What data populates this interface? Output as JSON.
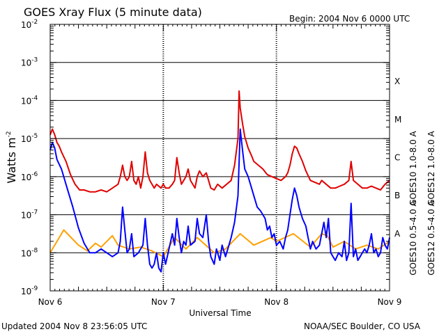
{
  "header": {
    "title": "GOES Xray Flux (5 minute data)",
    "begin_label": "Begin:  2004 Nov 6 0000 UTC"
  },
  "footer": {
    "updated": "Updated 2004 Nov  8 23:56:05 UTC",
    "credit": "NOAA/SEC Boulder, CO USA"
  },
  "colors": {
    "goes12_long": "#e00000",
    "goes12_short": "#0000ff",
    "goes10_long": "#8000c0",
    "goes10_short": "#ffa000",
    "grid": "#000000",
    "background": "#ffffff"
  },
  "chart_data": {
    "type": "line",
    "title": "GOES Xray Flux (5 minute data)",
    "xlabel": "Universal Time",
    "ylabel": {
      "base": "Watts m",
      "sup": "-2"
    },
    "yscale": "log",
    "ylim_exponent": [
      -9,
      -2
    ],
    "xlim_days": [
      0,
      3
    ],
    "x_tick_labels": [
      "Nov 6",
      "Nov 7",
      "Nov 8",
      "Nov 9"
    ],
    "y_ticks": [
      {
        "base": "10",
        "exp": "-9"
      },
      {
        "base": "10",
        "exp": "-8"
      },
      {
        "base": "10",
        "exp": "-7"
      },
      {
        "base": "10",
        "exp": "-6"
      },
      {
        "base": "10",
        "exp": "-5"
      },
      {
        "base": "10",
        "exp": "-4"
      },
      {
        "base": "10",
        "exp": "-3"
      },
      {
        "base": "10",
        "exp": "-2"
      }
    ],
    "flare_classes": [
      {
        "label": "A",
        "exponent": -8
      },
      {
        "label": "B",
        "exponent": -7
      },
      {
        "label": "C",
        "exponent": -6
      },
      {
        "label": "M",
        "exponent": -5
      },
      {
        "label": "X",
        "exponent": -4
      }
    ],
    "legend": [
      {
        "name": "GOES12 1.0-8.0 A",
        "color": "#e00000"
      },
      {
        "name": "GOES10 1.0-8.0 A",
        "color": "#8000c0"
      },
      {
        "name": "GOES12 0.5-4.0 A",
        "color": "#0000ff"
      },
      {
        "name": "GOES10 0.5-4.0 A",
        "color": "#ffa000"
      }
    ],
    "series": [
      {
        "name": "GOES10 0.5-4.0 A",
        "color": "#ffa000",
        "points": [
          [
            0.0,
            -8.0
          ],
          [
            0.12,
            -7.4
          ],
          [
            0.25,
            -7.8
          ],
          [
            0.33,
            -7.95
          ],
          [
            0.4,
            -7.75
          ],
          [
            0.45,
            -7.85
          ],
          [
            0.5,
            -7.7
          ],
          [
            0.55,
            -7.55
          ],
          [
            0.6,
            -7.8
          ],
          [
            0.7,
            -7.9
          ],
          [
            0.8,
            -7.85
          ],
          [
            0.9,
            -7.95
          ],
          [
            1.0,
            -8.1
          ],
          [
            1.1,
            -7.6
          ],
          [
            1.2,
            -7.9
          ],
          [
            1.3,
            -7.6
          ],
          [
            1.45,
            -8.0
          ],
          [
            1.55,
            -7.9
          ],
          [
            1.68,
            -7.5
          ],
          [
            1.8,
            -7.8
          ],
          [
            1.95,
            -7.6
          ],
          [
            2.0,
            -7.7
          ],
          [
            2.15,
            -7.5
          ],
          [
            2.3,
            -7.85
          ],
          [
            2.4,
            -7.5
          ],
          [
            2.45,
            -7.55
          ],
          [
            2.5,
            -7.85
          ],
          [
            2.6,
            -7.7
          ],
          [
            2.7,
            -7.9
          ],
          [
            2.8,
            -7.8
          ],
          [
            2.9,
            -7.9
          ],
          [
            3.0,
            -7.7
          ]
        ]
      },
      {
        "name": "GOES12 0.5-4.0 A",
        "color": "#0000ff",
        "points": [
          [
            0.0,
            -5.3
          ],
          [
            0.02,
            -5.1
          ],
          [
            0.04,
            -5.25
          ],
          [
            0.06,
            -5.55
          ],
          [
            0.1,
            -5.8
          ],
          [
            0.15,
            -6.3
          ],
          [
            0.2,
            -6.8
          ],
          [
            0.25,
            -7.35
          ],
          [
            0.3,
            -7.75
          ],
          [
            0.35,
            -8.0
          ],
          [
            0.4,
            -8.0
          ],
          [
            0.45,
            -7.9
          ],
          [
            0.5,
            -8.0
          ],
          [
            0.55,
            -8.1
          ],
          [
            0.6,
            -8.0
          ],
          [
            0.62,
            -7.7
          ],
          [
            0.64,
            -6.8
          ],
          [
            0.66,
            -7.4
          ],
          [
            0.68,
            -8.0
          ],
          [
            0.7,
            -7.9
          ],
          [
            0.72,
            -7.5
          ],
          [
            0.74,
            -8.1
          ],
          [
            0.78,
            -8.0
          ],
          [
            0.82,
            -7.8
          ],
          [
            0.84,
            -7.1
          ],
          [
            0.86,
            -7.8
          ],
          [
            0.88,
            -8.3
          ],
          [
            0.9,
            -8.4
          ],
          [
            0.92,
            -8.3
          ],
          [
            0.94,
            -8.0
          ],
          [
            0.96,
            -8.4
          ],
          [
            0.98,
            -8.5
          ],
          [
            1.0,
            -8.0
          ],
          [
            1.02,
            -8.3
          ],
          [
            1.05,
            -7.9
          ],
          [
            1.08,
            -7.5
          ],
          [
            1.1,
            -7.8
          ],
          [
            1.12,
            -7.1
          ],
          [
            1.14,
            -7.6
          ],
          [
            1.16,
            -8.0
          ],
          [
            1.18,
            -7.7
          ],
          [
            1.2,
            -7.8
          ],
          [
            1.22,
            -7.3
          ],
          [
            1.24,
            -7.8
          ],
          [
            1.28,
            -7.7
          ],
          [
            1.3,
            -7.1
          ],
          [
            1.32,
            -7.5
          ],
          [
            1.35,
            -7.6
          ],
          [
            1.38,
            -7.0
          ],
          [
            1.4,
            -7.7
          ],
          [
            1.42,
            -8.1
          ],
          [
            1.45,
            -8.3
          ],
          [
            1.47,
            -7.9
          ],
          [
            1.5,
            -8.2
          ],
          [
            1.52,
            -7.8
          ],
          [
            1.55,
            -8.1
          ],
          [
            1.58,
            -7.8
          ],
          [
            1.6,
            -7.6
          ],
          [
            1.63,
            -7.2
          ],
          [
            1.66,
            -6.5
          ],
          [
            1.68,
            -4.75
          ],
          [
            1.7,
            -5.3
          ],
          [
            1.72,
            -5.8
          ],
          [
            1.75,
            -6.0
          ],
          [
            1.78,
            -6.3
          ],
          [
            1.8,
            -6.5
          ],
          [
            1.83,
            -6.8
          ],
          [
            1.86,
            -6.9
          ],
          [
            1.88,
            -7.0
          ],
          [
            1.9,
            -7.1
          ],
          [
            1.92,
            -7.4
          ],
          [
            1.94,
            -7.3
          ],
          [
            1.96,
            -7.6
          ],
          [
            1.98,
            -7.5
          ],
          [
            2.0,
            -7.8
          ],
          [
            2.03,
            -7.7
          ],
          [
            2.06,
            -7.9
          ],
          [
            2.08,
            -7.6
          ],
          [
            2.1,
            -7.4
          ],
          [
            2.12,
            -7.0
          ],
          [
            2.14,
            -6.6
          ],
          [
            2.16,
            -6.3
          ],
          [
            2.18,
            -6.5
          ],
          [
            2.2,
            -6.8
          ],
          [
            2.23,
            -7.1
          ],
          [
            2.26,
            -7.3
          ],
          [
            2.28,
            -7.6
          ],
          [
            2.3,
            -7.9
          ],
          [
            2.32,
            -7.7
          ],
          [
            2.35,
            -7.9
          ],
          [
            2.38,
            -7.8
          ],
          [
            2.4,
            -7.5
          ],
          [
            2.42,
            -7.2
          ],
          [
            2.44,
            -7.6
          ],
          [
            2.46,
            -7.1
          ],
          [
            2.48,
            -8.0
          ],
          [
            2.5,
            -8.1
          ],
          [
            2.52,
            -8.2
          ],
          [
            2.55,
            -8.0
          ],
          [
            2.58,
            -8.1
          ],
          [
            2.6,
            -7.7
          ],
          [
            2.62,
            -8.2
          ],
          [
            2.64,
            -8.0
          ],
          [
            2.66,
            -6.7
          ],
          [
            2.68,
            -8.1
          ],
          [
            2.7,
            -7.9
          ],
          [
            2.72,
            -8.2
          ],
          [
            2.74,
            -8.1
          ],
          [
            2.76,
            -8.0
          ],
          [
            2.78,
            -7.9
          ],
          [
            2.8,
            -8.0
          ],
          [
            2.82,
            -7.8
          ],
          [
            2.84,
            -7.5
          ],
          [
            2.86,
            -8.0
          ],
          [
            2.88,
            -7.9
          ],
          [
            2.9,
            -8.1
          ],
          [
            2.92,
            -8.0
          ],
          [
            2.94,
            -7.6
          ],
          [
            2.96,
            -7.8
          ],
          [
            2.98,
            -7.9
          ],
          [
            3.0,
            -7.6
          ]
        ]
      },
      {
        "name": "GOES12 1.0-8.0 A",
        "color": "#e00000",
        "points": [
          [
            0.0,
            -4.9
          ],
          [
            0.02,
            -4.75
          ],
          [
            0.04,
            -4.9
          ],
          [
            0.06,
            -5.1
          ],
          [
            0.08,
            -5.2
          ],
          [
            0.1,
            -5.35
          ],
          [
            0.14,
            -5.6
          ],
          [
            0.18,
            -5.95
          ],
          [
            0.22,
            -6.2
          ],
          [
            0.26,
            -6.35
          ],
          [
            0.3,
            -6.35
          ],
          [
            0.35,
            -6.4
          ],
          [
            0.4,
            -6.4
          ],
          [
            0.45,
            -6.35
          ],
          [
            0.5,
            -6.4
          ],
          [
            0.55,
            -6.3
          ],
          [
            0.6,
            -6.2
          ],
          [
            0.62,
            -6.0
          ],
          [
            0.64,
            -5.7
          ],
          [
            0.66,
            -6.0
          ],
          [
            0.68,
            -6.1
          ],
          [
            0.7,
            -6.0
          ],
          [
            0.72,
            -5.6
          ],
          [
            0.74,
            -6.1
          ],
          [
            0.76,
            -6.2
          ],
          [
            0.78,
            -6.0
          ],
          [
            0.8,
            -6.3
          ],
          [
            0.82,
            -6.0
          ],
          [
            0.84,
            -5.35
          ],
          [
            0.86,
            -5.9
          ],
          [
            0.88,
            -6.1
          ],
          [
            0.9,
            -6.2
          ],
          [
            0.92,
            -6.3
          ],
          [
            0.94,
            -6.2
          ],
          [
            0.96,
            -6.25
          ],
          [
            0.98,
            -6.3
          ],
          [
            1.0,
            -6.2
          ],
          [
            1.02,
            -6.3
          ],
          [
            1.05,
            -6.3
          ],
          [
            1.08,
            -6.2
          ],
          [
            1.1,
            -6.1
          ],
          [
            1.12,
            -5.5
          ],
          [
            1.14,
            -5.9
          ],
          [
            1.16,
            -6.2
          ],
          [
            1.18,
            -6.1
          ],
          [
            1.2,
            -6.0
          ],
          [
            1.22,
            -5.8
          ],
          [
            1.24,
            -6.1
          ],
          [
            1.28,
            -6.3
          ],
          [
            1.3,
            -6.0
          ],
          [
            1.32,
            -5.85
          ],
          [
            1.35,
            -6.0
          ],
          [
            1.38,
            -5.9
          ],
          [
            1.4,
            -6.1
          ],
          [
            1.42,
            -6.3
          ],
          [
            1.45,
            -6.35
          ],
          [
            1.48,
            -6.2
          ],
          [
            1.52,
            -6.3
          ],
          [
            1.56,
            -6.2
          ],
          [
            1.6,
            -6.1
          ],
          [
            1.63,
            -5.7
          ],
          [
            1.66,
            -5.0
          ],
          [
            1.67,
            -3.75
          ],
          [
            1.68,
            -4.2
          ],
          [
            1.7,
            -4.6
          ],
          [
            1.72,
            -4.95
          ],
          [
            1.75,
            -5.25
          ],
          [
            1.78,
            -5.45
          ],
          [
            1.8,
            -5.6
          ],
          [
            1.84,
            -5.7
          ],
          [
            1.88,
            -5.8
          ],
          [
            1.92,
            -5.95
          ],
          [
            1.96,
            -6.0
          ],
          [
            2.0,
            -6.05
          ],
          [
            2.04,
            -6.1
          ],
          [
            2.08,
            -6.0
          ],
          [
            2.1,
            -5.9
          ],
          [
            2.12,
            -5.7
          ],
          [
            2.14,
            -5.4
          ],
          [
            2.16,
            -5.2
          ],
          [
            2.18,
            -5.25
          ],
          [
            2.2,
            -5.4
          ],
          [
            2.23,
            -5.6
          ],
          [
            2.26,
            -5.85
          ],
          [
            2.3,
            -6.1
          ],
          [
            2.34,
            -6.15
          ],
          [
            2.38,
            -6.2
          ],
          [
            2.4,
            -6.1
          ],
          [
            2.44,
            -6.2
          ],
          [
            2.48,
            -6.3
          ],
          [
            2.52,
            -6.3
          ],
          [
            2.56,
            -6.25
          ],
          [
            2.6,
            -6.2
          ],
          [
            2.64,
            -6.1
          ],
          [
            2.66,
            -5.6
          ],
          [
            2.68,
            -6.1
          ],
          [
            2.72,
            -6.2
          ],
          [
            2.76,
            -6.3
          ],
          [
            2.8,
            -6.3
          ],
          [
            2.84,
            -6.25
          ],
          [
            2.88,
            -6.3
          ],
          [
            2.92,
            -6.35
          ],
          [
            2.96,
            -6.2
          ],
          [
            3.0,
            -6.1
          ]
        ]
      }
    ]
  }
}
